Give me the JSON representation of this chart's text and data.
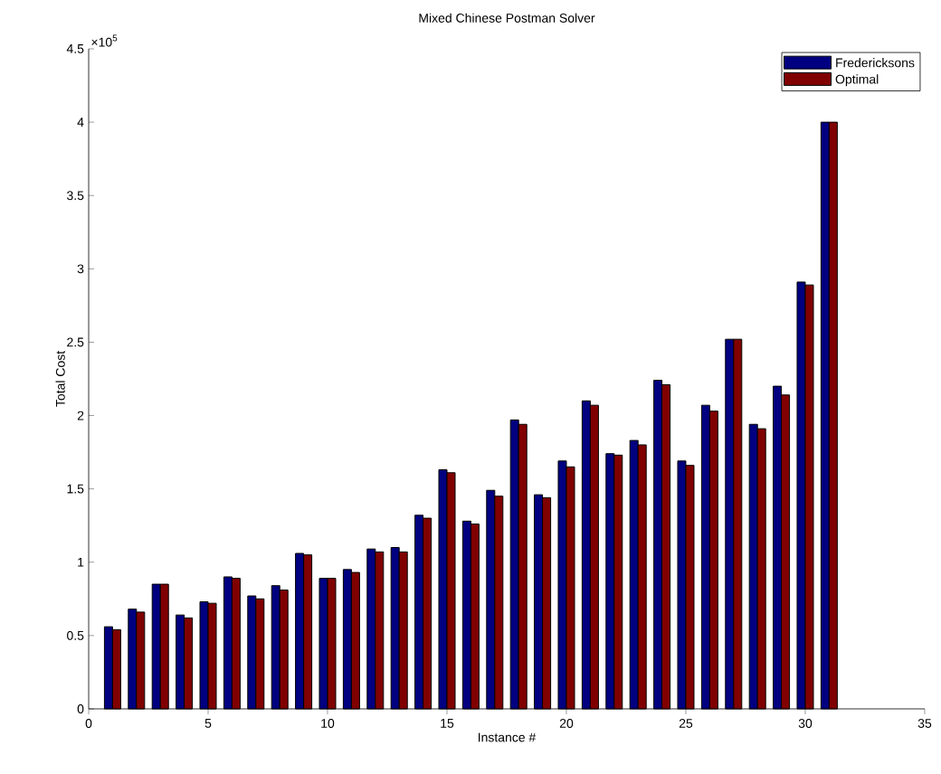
{
  "chart_data": {
    "type": "bar",
    "title": "Mixed Chinese Postman Solver",
    "xlabel": "Instance #",
    "ylabel": "Total Cost",
    "annotations": [
      "×10$^{5}$"
    ],
    "x": [
      1,
      2,
      3,
      4,
      5,
      6,
      7,
      8,
      9,
      10,
      11,
      12,
      13,
      14,
      15,
      16,
      17,
      18,
      19,
      20,
      21,
      22,
      23,
      24,
      25,
      26,
      27,
      28,
      29,
      30,
      31
    ],
    "series": [
      {
        "name": "Fredericksons",
        "color": "#000080",
        "values": [
          0.56,
          0.68,
          0.85,
          0.64,
          0.73,
          0.9,
          0.77,
          0.84,
          1.06,
          0.89,
          0.95,
          1.09,
          1.1,
          1.32,
          1.63,
          1.28,
          1.49,
          1.97,
          1.46,
          1.69,
          2.1,
          1.74,
          1.83,
          2.24,
          1.69,
          2.07,
          2.52,
          1.94,
          2.2,
          2.91,
          4.0
        ]
      },
      {
        "name": "Optimal",
        "color": "#800000",
        "values": [
          0.54,
          0.66,
          0.85,
          0.62,
          0.72,
          0.89,
          0.75,
          0.81,
          1.05,
          0.89,
          0.93,
          1.07,
          1.07,
          1.3,
          1.61,
          1.26,
          1.45,
          1.94,
          1.44,
          1.65,
          2.07,
          1.73,
          1.8,
          2.21,
          1.66,
          2.03,
          2.52,
          1.91,
          2.14,
          2.89,
          4.0
        ]
      }
    ],
    "xlim": [
      0,
      35
    ],
    "ylim": [
      0,
      4.5
    ],
    "xticks": [
      0,
      5,
      10,
      15,
      20,
      25,
      30,
      35
    ],
    "yticks": [
      0,
      0.5,
      1,
      1.5,
      2,
      2.5,
      3,
      3.5,
      4,
      4.5
    ],
    "legend": "top right"
  }
}
